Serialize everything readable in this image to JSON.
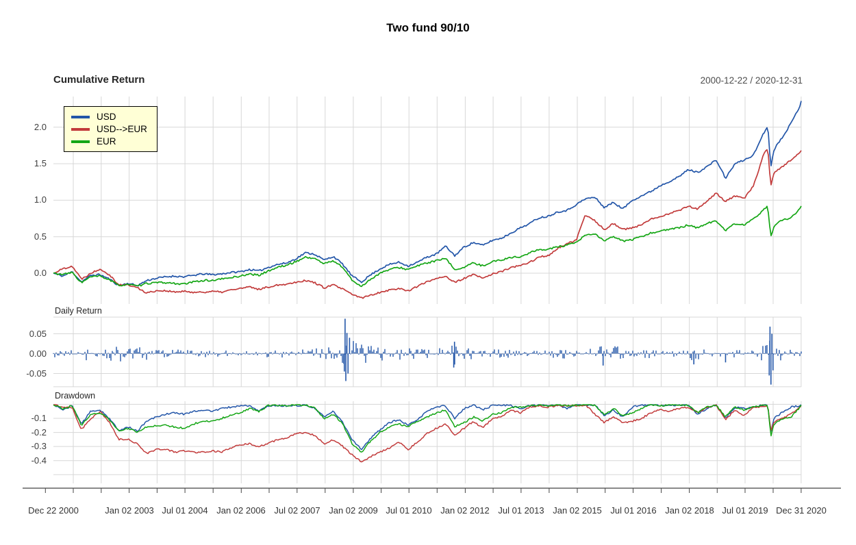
{
  "title": "Two fund 90/10",
  "panels": {
    "cumulative": {
      "title": "Cumulative Return",
      "date_range": "2000-12-22 / 2020-12-31",
      "y_ticks": [
        "0.0",
        "0.5",
        "1.0",
        "1.5",
        "2.0"
      ]
    },
    "daily": {
      "title": "Daily Return",
      "y_ticks": [
        "0.05",
        "0.00",
        "-0.05"
      ]
    },
    "drawdown": {
      "title": "Drawdown",
      "y_ticks": [
        "-0.1",
        "-0.2",
        "-0.3",
        "-0.4"
      ]
    }
  },
  "legend": [
    {
      "label": "USD",
      "color": "#2255A8"
    },
    {
      "label": "USD-->EUR",
      "color": "#C23B3B"
    },
    {
      "label": "EUR",
      "color": "#14A614"
    }
  ],
  "x_axis": {
    "labels": [
      "Dec 22 2000",
      "Jan 02 2003",
      "Jul 01 2004",
      "Jan 02 2006",
      "Jul 02 2007",
      "Jan 02 2009",
      "Jul 01 2010",
      "Jan 02 2012",
      "Jul 01 2013",
      "Jan 02 2015",
      "Jul 01 2016",
      "Jan 02 2018",
      "Jul 01 2019",
      "Dec 31 2020"
    ]
  },
  "colors": {
    "usd": "#2255A8",
    "usd_eur": "#C23B3B",
    "eur": "#14A614",
    "grid": "#D7D7D7",
    "axis": "#444444",
    "legend_bg": "#FFFFD6",
    "text": "#262626"
  },
  "chart_data": [
    {
      "type": "line",
      "title": "Cumulative Return",
      "date_range": "2000-12-22 / 2020-12-31",
      "x_unit": "years since 2000-12-22",
      "ylim": [
        -0.41,
        2.45
      ],
      "yticks": [
        0,
        0.5,
        1.0,
        1.5,
        2.0
      ],
      "grid": true,
      "legend_position": "top-left",
      "x": [
        0,
        0.25,
        0.5,
        0.75,
        1,
        1.25,
        1.5,
        1.75,
        2,
        2.25,
        2.5,
        2.75,
        3,
        3.25,
        3.5,
        3.75,
        4,
        4.25,
        4.5,
        4.75,
        5,
        5.25,
        5.5,
        5.75,
        6,
        6.25,
        6.5,
        6.75,
        7,
        7.25,
        7.5,
        7.75,
        8,
        8.25,
        8.5,
        8.75,
        9,
        9.25,
        9.5,
        9.75,
        10,
        10.25,
        10.5,
        10.75,
        11,
        11.25,
        11.5,
        11.75,
        12,
        12.25,
        12.5,
        12.75,
        13,
        13.25,
        13.5,
        13.75,
        14,
        14.25,
        14.5,
        14.75,
        15,
        15.25,
        15.5,
        15.75,
        16,
        16.25,
        16.5,
        16.75,
        17,
        17.25,
        17.5,
        17.75,
        18,
        18.25,
        18.5,
        18.75,
        19,
        19.13,
        19.21,
        19.3,
        19.5,
        19.75,
        20,
        20.03
      ],
      "series": [
        {
          "name": "USD",
          "color": "#2255A8",
          "values": [
            0,
            -0.04,
            0.02,
            -0.12,
            -0.03,
            -0.02,
            -0.08,
            -0.17,
            -0.14,
            -0.17,
            -0.1,
            -0.07,
            -0.05,
            -0.04,
            -0.05,
            -0.03,
            -0.01,
            -0.02,
            -0.01,
            0.01,
            0.02,
            0.05,
            0.03,
            0.08,
            0.12,
            0.14,
            0.2,
            0.28,
            0.26,
            0.18,
            0.23,
            0.12,
            -0.04,
            -0.12,
            -0.02,
            0.06,
            0.12,
            0.15,
            0.1,
            0.15,
            0.22,
            0.26,
            0.37,
            0.24,
            0.36,
            0.42,
            0.38,
            0.45,
            0.48,
            0.55,
            0.62,
            0.68,
            0.76,
            0.78,
            0.84,
            0.86,
            0.94,
            1.02,
            1.04,
            0.9,
            0.97,
            0.88,
            1.0,
            1.06,
            1.12,
            1.2,
            1.26,
            1.32,
            1.42,
            1.38,
            1.46,
            1.55,
            1.3,
            1.5,
            1.55,
            1.62,
            1.9,
            2.02,
            1.46,
            1.7,
            1.85,
            2.05,
            2.3,
            2.38
          ]
        },
        {
          "name": "USD-->EUR",
          "color": "#C23B3B",
          "values": [
            0,
            0.06,
            0.1,
            -0.08,
            0,
            0.06,
            -0.02,
            -0.16,
            -0.16,
            -0.2,
            -0.27,
            -0.24,
            -0.24,
            -0.26,
            -0.25,
            -0.26,
            -0.26,
            -0.25,
            -0.26,
            -0.23,
            -0.21,
            -0.19,
            -0.22,
            -0.19,
            -0.16,
            -0.15,
            -0.12,
            -0.1,
            -0.13,
            -0.2,
            -0.16,
            -0.22,
            -0.29,
            -0.34,
            -0.3,
            -0.26,
            -0.23,
            -0.21,
            -0.24,
            -0.18,
            -0.12,
            -0.07,
            -0.04,
            -0.13,
            -0.07,
            -0.02,
            -0.07,
            -0.01,
            0.02,
            0.08,
            0.1,
            0.15,
            0.22,
            0.24,
            0.34,
            0.4,
            0.45,
            0.8,
            0.72,
            0.6,
            0.68,
            0.6,
            0.62,
            0.66,
            0.74,
            0.78,
            0.82,
            0.86,
            0.92,
            0.88,
            0.98,
            1.1,
            0.98,
            1.06,
            1.02,
            1.2,
            1.6,
            1.72,
            1.2,
            1.38,
            1.45,
            1.55,
            1.65,
            1.68
          ]
        },
        {
          "name": "EUR",
          "color": "#14A614",
          "values": [
            0,
            -0.02,
            0.01,
            -0.13,
            -0.05,
            -0.04,
            -0.09,
            -0.17,
            -0.15,
            -0.18,
            -0.14,
            -0.13,
            -0.13,
            -0.14,
            -0.15,
            -0.12,
            -0.1,
            -0.1,
            -0.08,
            -0.06,
            -0.04,
            -0.01,
            -0.03,
            0.03,
            0.08,
            0.11,
            0.16,
            0.22,
            0.2,
            0.13,
            0.17,
            0.08,
            -0.1,
            -0.18,
            -0.08,
            0.0,
            0.05,
            0.08,
            0.05,
            0.1,
            0.14,
            0.17,
            0.2,
            0.05,
            0.08,
            0.14,
            0.1,
            0.16,
            0.18,
            0.22,
            0.22,
            0.28,
            0.32,
            0.33,
            0.36,
            0.38,
            0.42,
            0.52,
            0.54,
            0.44,
            0.5,
            0.44,
            0.46,
            0.5,
            0.55,
            0.58,
            0.6,
            0.62,
            0.66,
            0.62,
            0.68,
            0.72,
            0.58,
            0.68,
            0.66,
            0.74,
            0.86,
            0.92,
            0.5,
            0.65,
            0.72,
            0.76,
            0.88,
            0.92
          ]
        }
      ]
    },
    {
      "type": "bar",
      "title": "Daily Return",
      "x_unit": "years since 2000-12-22",
      "series_name": "USD",
      "color": "#2255A8",
      "ylim": [
        -0.084,
        0.092
      ],
      "yticks": [
        0.05,
        0,
        -0.05
      ],
      "envelope": {
        "note": "max up / max down daily-return magnitude read from the chart, by time",
        "t": [
          0,
          0.5,
          0.9,
          1.4,
          1.8,
          2.3,
          2.8,
          3.5,
          4.5,
          5.4,
          5.8,
          6.3,
          6.8,
          7.3,
          7.7,
          7.9,
          8.1,
          8.4,
          9.0,
          9.4,
          9.6,
          10.2,
          10.7,
          11.0,
          11.5,
          12.5,
          13.2,
          13.8,
          14.3,
          14.7,
          15.1,
          15.5,
          16.2,
          16.8,
          17.1,
          17.3,
          17.8,
          18.0,
          18.3,
          18.9,
          19.15,
          19.3,
          19.6,
          20.03
        ],
        "up": [
          0.012,
          0.015,
          0.02,
          0.013,
          0.024,
          0.02,
          0.012,
          0.01,
          0.008,
          0.008,
          0.012,
          0.008,
          0.013,
          0.016,
          0.022,
          0.05,
          0.04,
          0.022,
          0.013,
          0.02,
          0.014,
          0.01,
          0.028,
          0.014,
          0.013,
          0.01,
          0.008,
          0.012,
          0.011,
          0.022,
          0.02,
          0.014,
          0.009,
          0.006,
          0.016,
          0.014,
          0.009,
          0.016,
          0.011,
          0.008,
          0.045,
          0.022,
          0.012,
          0.009
        ],
        "down": [
          0.013,
          0.016,
          0.022,
          0.014,
          0.028,
          0.022,
          0.013,
          0.011,
          0.009,
          0.009,
          0.013,
          0.009,
          0.014,
          0.018,
          0.024,
          0.055,
          0.045,
          0.024,
          0.014,
          0.022,
          0.015,
          0.011,
          0.032,
          0.015,
          0.014,
          0.011,
          0.009,
          0.014,
          0.012,
          0.026,
          0.023,
          0.016,
          0.01,
          0.007,
          0.02,
          0.016,
          0.01,
          0.019,
          0.012,
          0.009,
          0.055,
          0.024,
          0.013,
          0.011
        ]
      },
      "spikes": [
        [
          7.79,
          -0.045
        ],
        [
          7.81,
          0.088
        ],
        [
          7.83,
          -0.069
        ],
        [
          7.86,
          0.052
        ],
        [
          7.89,
          -0.05
        ],
        [
          7.93,
          0.04
        ],
        [
          10.72,
          -0.035
        ],
        [
          10.74,
          0.03
        ],
        [
          14.72,
          -0.03
        ],
        [
          17.15,
          -0.027
        ],
        [
          18.0,
          -0.022
        ],
        [
          19.17,
          -0.055
        ],
        [
          19.19,
          0.068
        ],
        [
          19.215,
          -0.078
        ],
        [
          19.24,
          0.05
        ],
        [
          19.27,
          -0.042
        ]
      ]
    },
    {
      "type": "line",
      "title": "Drawdown",
      "x_unit": "years since 2000-12-22",
      "ylim": [
        -0.56,
        0.02
      ],
      "yticks": [
        -0.1,
        -0.2,
        -0.3,
        -0.4
      ],
      "x": [
        0,
        0.25,
        0.5,
        0.75,
        1,
        1.25,
        1.5,
        1.75,
        2,
        2.25,
        2.5,
        2.75,
        3,
        3.25,
        3.5,
        3.75,
        4,
        4.25,
        4.5,
        4.75,
        5,
        5.25,
        5.5,
        5.75,
        6,
        6.25,
        6.5,
        6.75,
        7,
        7.25,
        7.5,
        7.75,
        8,
        8.25,
        8.5,
        8.75,
        9,
        9.25,
        9.5,
        9.75,
        10,
        10.25,
        10.5,
        10.75,
        11,
        11.25,
        11.5,
        11.75,
        12,
        12.25,
        12.5,
        12.75,
        13,
        13.25,
        13.5,
        13.75,
        14,
        14.25,
        14.5,
        14.75,
        15,
        15.25,
        15.5,
        15.75,
        16,
        16.25,
        16.5,
        16.75,
        17,
        17.25,
        17.5,
        17.75,
        18,
        18.25,
        18.5,
        18.75,
        19,
        19.13,
        19.21,
        19.3,
        19.5,
        19.75,
        20,
        20.03
      ],
      "series": [
        {
          "name": "USD",
          "color": "#2255A8",
          "values": [
            0,
            -0.04,
            -0.01,
            -0.14,
            -0.05,
            -0.04,
            -0.1,
            -0.19,
            -0.16,
            -0.19,
            -0.12,
            -0.09,
            -0.07,
            -0.06,
            -0.07,
            -0.05,
            -0.04,
            -0.05,
            -0.03,
            -0.02,
            -0.01,
            -0.01,
            -0.05,
            -0.01,
            -0.01,
            -0.01,
            -0.01,
            -0.005,
            -0.03,
            -0.09,
            -0.05,
            -0.13,
            -0.25,
            -0.32,
            -0.24,
            -0.18,
            -0.13,
            -0.11,
            -0.15,
            -0.11,
            -0.05,
            -0.02,
            -0.01,
            -0.1,
            -0.03,
            -0.005,
            -0.04,
            -0.01,
            -0.005,
            -0.01,
            -0.03,
            -0.01,
            -0.005,
            -0.01,
            -0.005,
            -0.03,
            -0.005,
            -0.005,
            -0.005,
            -0.08,
            -0.04,
            -0.09,
            -0.02,
            -0.005,
            -0.005,
            -0.01,
            -0.005,
            -0.005,
            -0.005,
            -0.07,
            -0.03,
            -0.005,
            -0.1,
            -0.02,
            -0.03,
            -0.02,
            -0.005,
            -0.005,
            -0.2,
            -0.1,
            -0.06,
            -0.02,
            -0.01,
            -0.005
          ]
        },
        {
          "name": "USD-->EUR",
          "color": "#C23B3B",
          "values": [
            0,
            -0.02,
            -0.02,
            -0.18,
            -0.1,
            -0.05,
            -0.13,
            -0.25,
            -0.25,
            -0.28,
            -0.35,
            -0.32,
            -0.32,
            -0.34,
            -0.33,
            -0.34,
            -0.34,
            -0.33,
            -0.34,
            -0.31,
            -0.29,
            -0.28,
            -0.3,
            -0.28,
            -0.25,
            -0.24,
            -0.21,
            -0.2,
            -0.22,
            -0.28,
            -0.25,
            -0.3,
            -0.36,
            -0.41,
            -0.37,
            -0.34,
            -0.31,
            -0.27,
            -0.32,
            -0.27,
            -0.21,
            -0.17,
            -0.14,
            -0.22,
            -0.17,
            -0.12,
            -0.17,
            -0.1,
            -0.09,
            -0.04,
            -0.06,
            -0.02,
            -0.01,
            -0.02,
            -0.01,
            -0.01,
            -0.01,
            -0.005,
            -0.07,
            -0.13,
            -0.09,
            -0.13,
            -0.12,
            -0.1,
            -0.06,
            -0.04,
            -0.05,
            -0.03,
            -0.02,
            -0.06,
            -0.02,
            -0.005,
            -0.11,
            -0.04,
            -0.08,
            -0.02,
            -0.02,
            -0.005,
            -0.19,
            -0.13,
            -0.1,
            -0.07,
            -0.02,
            -0.01
          ]
        },
        {
          "name": "EUR",
          "color": "#14A614",
          "values": [
            0,
            -0.03,
            -0.01,
            -0.15,
            -0.07,
            -0.06,
            -0.11,
            -0.19,
            -0.17,
            -0.2,
            -0.16,
            -0.15,
            -0.15,
            -0.16,
            -0.17,
            -0.14,
            -0.12,
            -0.12,
            -0.1,
            -0.08,
            -0.06,
            -0.03,
            -0.05,
            -0.01,
            -0.005,
            -0.01,
            -0.005,
            -0.005,
            -0.025,
            -0.1,
            -0.07,
            -0.14,
            -0.28,
            -0.34,
            -0.26,
            -0.2,
            -0.16,
            -0.14,
            -0.16,
            -0.12,
            -0.09,
            -0.06,
            -0.04,
            -0.16,
            -0.13,
            -0.09,
            -0.12,
            -0.07,
            -0.06,
            -0.02,
            -0.02,
            -0.01,
            -0.005,
            -0.01,
            -0.005,
            -0.01,
            -0.005,
            -0.005,
            -0.005,
            -0.07,
            -0.03,
            -0.08,
            -0.06,
            -0.03,
            -0.005,
            -0.01,
            -0.005,
            -0.005,
            -0.005,
            -0.06,
            -0.02,
            -0.005,
            -0.09,
            -0.02,
            -0.04,
            -0.02,
            -0.005,
            -0.005,
            -0.23,
            -0.14,
            -0.11,
            -0.09,
            -0.02,
            -0.005
          ]
        }
      ]
    }
  ]
}
